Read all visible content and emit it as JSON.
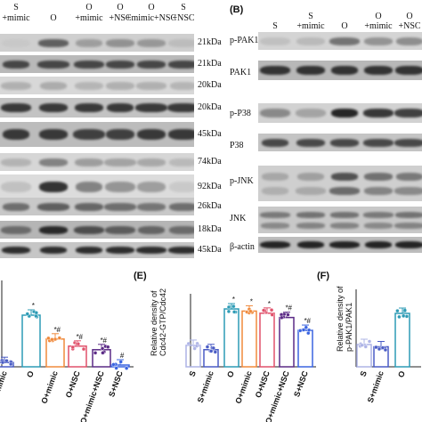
{
  "panelB": {
    "letter": "(B)"
  },
  "leftBlot": {
    "header": [
      {
        "l1": "S",
        "l2": "+mimic"
      },
      {
        "l1": "",
        "l2": "O"
      },
      {
        "l1": "O",
        "l2": "+mimic"
      },
      {
        "l1": "O",
        "l2": "+NSC"
      },
      {
        "l1": "O",
        "l2": "+mimic+NSC"
      },
      {
        "l1": "S",
        "l2": "+NSC"
      }
    ],
    "sizes": [
      "21kDa",
      "21kDa",
      "20kDa",
      "20kDa",
      "45kDa",
      "74kDa",
      "92kDa",
      "26kDa",
      "18kDa",
      "45kDa"
    ]
  },
  "rightBlot": {
    "header": [
      {
        "l1": "",
        "l2": "S"
      },
      {
        "l1": "S",
        "l2": "+mimic"
      },
      {
        "l1": "",
        "l2": "O"
      },
      {
        "l1": "O",
        "l2": "+mimic"
      },
      {
        "l1": "O",
        "l2": "+NSC"
      }
    ],
    "labels": [
      "p-PAK1",
      "PAK1",
      "p-P38",
      "P38",
      "p-JNK",
      "JNK",
      "β-actin"
    ]
  },
  "chart_data": [
    {
      "panel": "",
      "type": "bar",
      "categories": [
        "S+mimic",
        "O",
        "O+mimic",
        "O+NSC",
        "O+mimic+NSC",
        "S+NSC"
      ],
      "category_labels": [
        "+mimic",
        "O",
        "O+mimic",
        "O+NSC",
        "O+mimic+NSC",
        "S+NSC"
      ],
      "values": [
        0.12,
        1.45,
        0.78,
        0.58,
        0.48,
        0.05
      ],
      "annotations": [
        "",
        "*",
        "*#",
        "*#",
        "*#",
        "#"
      ]
    },
    {
      "panel": "(E)",
      "type": "bar",
      "ylabel_line1": "Relative density of",
      "ylabel_line2": "Cdc42-GTP/Cdc42",
      "categories": [
        "S",
        "S+mimic",
        "O",
        "O+mimic",
        "O+NSC",
        "O+mimic+NSC",
        "S+NSC"
      ],
      "values": [
        0.5,
        0.4,
        1.35,
        1.3,
        1.25,
        1.15,
        0.85
      ],
      "annotations": [
        "",
        "",
        "*",
        "*",
        "*",
        "*#",
        "*#"
      ]
    },
    {
      "panel": "(F)",
      "type": "bar",
      "ylabel_line1": "Relative density of",
      "ylabel_line2": "p-PAK1/PAK1",
      "categories": [
        "S",
        "S+mimic",
        "O"
      ],
      "values": [
        0.5,
        0.45,
        1.2
      ],
      "annotations": [
        "",
        "",
        ""
      ]
    }
  ]
}
